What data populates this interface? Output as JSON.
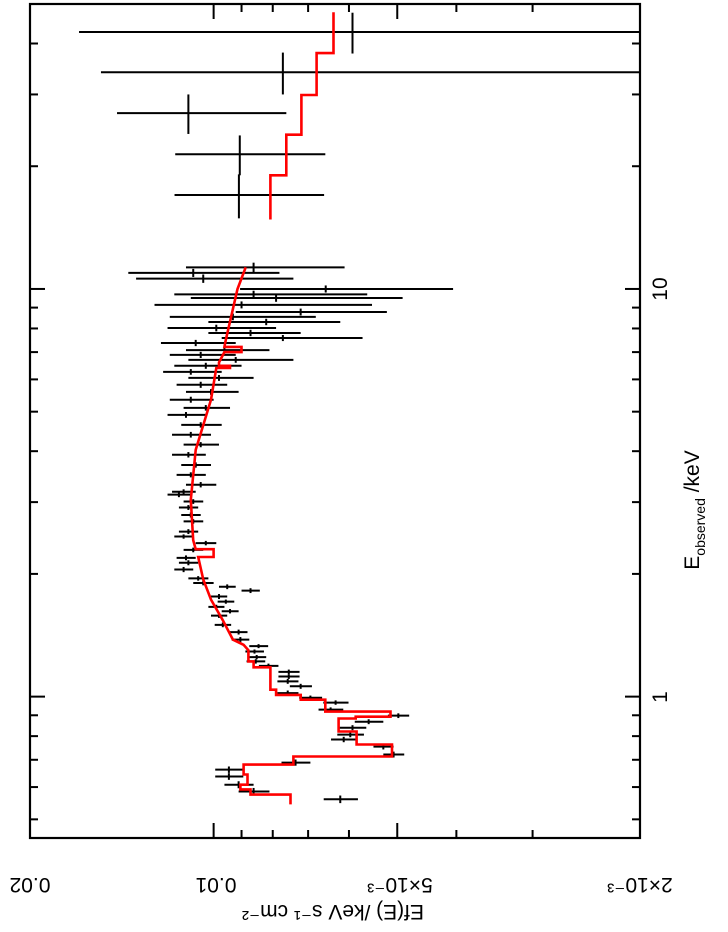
{
  "chart_data": {
    "type": "scatter",
    "orientation": "rotated 90 degrees counter-clockwise",
    "xlabel_main": "E",
    "xlabel_sub": "observed",
    "xlabel_unit": " /keV",
    "ylabel": "Ef(E) /keV s⁻¹ cm⁻²",
    "xscale": "log",
    "yscale": "log",
    "xlim": [
      0.45,
      50
    ],
    "ylim": [
      0.002,
      0.02
    ],
    "grid": false,
    "x_tick_labels": [
      {
        "value": 1,
        "label": "1"
      },
      {
        "value": 10,
        "label": "10"
      }
    ],
    "x_major_ticks": [
      1,
      10
    ],
    "x_minor_ticks": [
      0.5,
      0.6,
      0.7,
      0.8,
      0.9,
      2,
      3,
      4,
      5,
      6,
      7,
      8,
      9,
      20,
      30,
      40
    ],
    "y_tick_labels": [
      {
        "value": 0.02,
        "label": "0.02"
      },
      {
        "value": 0.01,
        "label": "0.01"
      },
      {
        "value": 0.005,
        "label": "5×10⁻³"
      },
      {
        "value": 0.002,
        "label": "2×10⁻³"
      }
    ],
    "y_major_ticks": [
      0.002,
      0.005,
      0.01,
      0.02
    ],
    "y_minor_ticks": [
      0.003,
      0.004,
      0.006,
      0.007,
      0.008,
      0.009
    ],
    "colors": {
      "data": "#000000",
      "model": "#ff0000"
    },
    "data_columns": [
      "energy_keV",
      "flux",
      "energy_err",
      "flux_err"
    ],
    "data_points": [
      [
        42.7,
        0.00592,
        4.9,
        0.0107
      ],
      [
        34.0,
        0.0077,
        4.0,
        0.0076
      ],
      [
        27.0,
        0.011,
        3.0,
        0.0034
      ],
      [
        21.4,
        0.00906,
        2.4,
        0.0025
      ],
      [
        17.0,
        0.00909,
        2.1,
        0.0025
      ],
      [
        11.3,
        0.0086,
        0.3,
        0.0025
      ],
      [
        10.95,
        0.0108,
        0.25,
        0.003
      ],
      [
        10.6,
        0.0104,
        0.25,
        0.003
      ],
      [
        10.0,
        0.00655,
        0.2,
        0.0025
      ],
      [
        9.7,
        0.0086,
        0.2,
        0.003
      ],
      [
        9.5,
        0.0079,
        0.2,
        0.003
      ],
      [
        9.14,
        0.009,
        0.18,
        0.0035
      ],
      [
        8.78,
        0.0072,
        0.17,
        0.002
      ],
      [
        8.54,
        0.0093,
        0.16,
        0.0025
      ],
      [
        8.3,
        0.0082,
        0.15,
        0.002
      ],
      [
        8.02,
        0.0099,
        0.15,
        0.002
      ],
      [
        7.8,
        0.0087,
        0.14,
        0.0015
      ],
      [
        7.58,
        0.0077,
        0.13,
        0.002
      ],
      [
        7.37,
        0.0107,
        0.13,
        0.0015
      ],
      [
        7.08,
        0.0096,
        0.12,
        0.0015
      ],
      [
        6.89,
        0.0105,
        0.12,
        0.0013
      ],
      [
        6.7,
        0.0092,
        0.11,
        0.0018
      ],
      [
        6.48,
        0.0103,
        0.11,
        0.0013
      ],
      [
        6.26,
        0.0109,
        0.1,
        0.0012
      ],
      [
        6.05,
        0.0098,
        0.1,
        0.0012
      ],
      [
        5.82,
        0.0105,
        0.1,
        0.001
      ],
      [
        5.59,
        0.0101,
        0.09,
        0.001
      ],
      [
        5.35,
        0.0109,
        0.09,
        0.0009
      ],
      [
        5.11,
        0.0103,
        0.08,
        0.0009
      ],
      [
        4.91,
        0.0111,
        0.08,
        0.0008
      ],
      [
        4.64,
        0.0105,
        0.07,
        0.0008
      ],
      [
        4.39,
        0.0109,
        0.07,
        0.0008
      ],
      [
        4.15,
        0.0105,
        0.06,
        0.0007
      ],
      [
        3.92,
        0.011,
        0.06,
        0.0007
      ],
      [
        3.7,
        0.0107,
        0.055,
        0.0006
      ],
      [
        3.5,
        0.0109,
        0.05,
        0.0006
      ],
      [
        3.31,
        0.0105,
        0.05,
        0.0006
      ],
      [
        3.18,
        0.0112,
        0.045,
        0.0005
      ],
      [
        3.13,
        0.0114,
        0.045,
        0.0005
      ],
      [
        3.01,
        0.0108,
        0.04,
        0.0004
      ],
      [
        2.91,
        0.011,
        0.04,
        0.0004
      ],
      [
        2.79,
        0.0109,
        0.04,
        0.0004
      ],
      [
        2.69,
        0.0108,
        0.035,
        0.0004
      ],
      [
        2.54,
        0.011,
        0.035,
        0.0004
      ],
      [
        2.47,
        0.0112,
        0.03,
        0.0004
      ],
      [
        2.38,
        0.0103,
        0.03,
        0.0004
      ],
      [
        2.29,
        0.0108,
        0.03,
        0.0004
      ],
      [
        2.19,
        0.0111,
        0.03,
        0.0004
      ],
      [
        2.13,
        0.011,
        0.03,
        0.0004
      ],
      [
        2.05,
        0.0112,
        0.03,
        0.0004
      ],
      [
        1.95,
        0.0106,
        0.025,
        0.0004
      ],
      [
        1.9,
        0.0104,
        0.025,
        0.0004
      ],
      [
        1.86,
        0.0095,
        0.025,
        0.0003
      ],
      [
        1.82,
        0.0087,
        0.025,
        0.0003
      ],
      [
        1.76,
        0.0098,
        0.025,
        0.0003
      ],
      [
        1.71,
        0.00955,
        0.02,
        0.0003
      ],
      [
        1.66,
        0.0099,
        0.02,
        0.0003
      ],
      [
        1.62,
        0.0094,
        0.02,
        0.0003
      ],
      [
        1.58,
        0.0098,
        0.02,
        0.0003
      ],
      [
        1.5,
        0.00966,
        0.02,
        0.0003
      ],
      [
        1.44,
        0.0091,
        0.02,
        0.0003
      ],
      [
        1.38,
        0.00904,
        0.02,
        0.0003
      ],
      [
        1.33,
        0.00844,
        0.015,
        0.0003
      ],
      [
        1.29,
        0.00857,
        0.015,
        0.0003
      ],
      [
        1.25,
        0.0085,
        0.015,
        0.0003
      ],
      [
        1.22,
        0.00853,
        0.015,
        0.0003
      ],
      [
        1.19,
        0.00813,
        0.015,
        0.0003
      ],
      [
        1.15,
        0.00753,
        0.015,
        0.0003
      ],
      [
        1.12,
        0.00753,
        0.015,
        0.0003
      ],
      [
        1.09,
        0.00756,
        0.015,
        0.0003
      ],
      [
        1.06,
        0.0072,
        0.015,
        0.0003
      ],
      [
        1.02,
        0.00756,
        0.015,
        0.0003
      ],
      [
        0.994,
        0.00694,
        0.012,
        0.0003
      ],
      [
        0.967,
        0.00631,
        0.012,
        0.0003
      ],
      [
        0.929,
        0.00643,
        0.012,
        0.0003
      ],
      [
        0.898,
        0.00498,
        0.012,
        0.0002
      ],
      [
        0.868,
        0.00557,
        0.012,
        0.0003
      ],
      [
        0.839,
        0.00592,
        0.012,
        0.0003
      ],
      [
        0.807,
        0.00597,
        0.012,
        0.0003
      ],
      [
        0.785,
        0.00612,
        0.012,
        0.0003
      ],
      [
        0.754,
        0.00527,
        0.012,
        0.0002
      ],
      [
        0.721,
        0.00507,
        0.012,
        0.0002
      ],
      [
        0.689,
        0.00734,
        0.012,
        0.0004
      ],
      [
        0.662,
        0.00944,
        0.012,
        0.0005
      ],
      [
        0.637,
        0.00944,
        0.012,
        0.0005
      ],
      [
        0.608,
        0.0091,
        0.012,
        0.0005
      ],
      [
        0.585,
        0.0086,
        0.012,
        0.0005
      ],
      [
        0.56,
        0.0062,
        0.012,
        0.0004
      ]
    ],
    "model_columns": [
      "energy_keV",
      "flux"
    ],
    "model_high": [
      [
        47.7,
        0.00636
      ],
      [
        37.9,
        0.00636
      ],
      [
        37.9,
        0.00678
      ],
      [
        29.9,
        0.00678
      ],
      [
        29.9,
        0.00718
      ],
      [
        23.9,
        0.00718
      ],
      [
        23.9,
        0.0076
      ],
      [
        19.0,
        0.0076
      ],
      [
        19.0,
        0.00807
      ],
      [
        14.8,
        0.00807
      ]
    ],
    "model_low": [
      [
        11.3,
        0.00886
      ],
      [
        10.0,
        0.00914
      ],
      [
        7.5,
        0.00955
      ],
      [
        7.21,
        0.0096
      ],
      [
        7.21,
        0.009
      ],
      [
        7.0,
        0.009
      ],
      [
        7.0,
        0.0096
      ],
      [
        6.6,
        0.0098
      ],
      [
        6.48,
        0.0098
      ],
      [
        6.48,
        0.0094
      ],
      [
        6.4,
        0.0094
      ],
      [
        6.4,
        0.0099
      ],
      [
        5.35,
        0.0101
      ],
      [
        4.03,
        0.0107
      ],
      [
        3.04,
        0.0109
      ],
      [
        2.42,
        0.0108
      ],
      [
        2.3,
        0.0107
      ],
      [
        2.3,
        0.01
      ],
      [
        2.2,
        0.01
      ],
      [
        2.2,
        0.0106
      ],
      [
        1.94,
        0.0104
      ],
      [
        1.73,
        0.0101
      ],
      [
        1.54,
        0.00966
      ],
      [
        1.38,
        0.0093
      ],
      [
        1.34,
        0.00893
      ],
      [
        1.3,
        0.00877
      ],
      [
        1.22,
        0.00877
      ],
      [
        1.22,
        0.0086
      ],
      [
        1.18,
        0.0086
      ],
      [
        1.18,
        0.00807
      ],
      [
        1.04,
        0.00807
      ],
      [
        1.04,
        0.0079
      ],
      [
        1.01,
        0.0079
      ],
      [
        1.01,
        0.0072
      ],
      [
        0.983,
        0.0072
      ],
      [
        0.983,
        0.00656
      ],
      [
        0.919,
        0.00656
      ],
      [
        0.919,
        0.00513
      ],
      [
        0.893,
        0.00513
      ],
      [
        0.893,
        0.00585
      ],
      [
        0.884,
        0.00585
      ],
      [
        0.884,
        0.00624
      ],
      [
        0.821,
        0.00624
      ],
      [
        0.821,
        0.00583
      ],
      [
        0.763,
        0.00583
      ],
      [
        0.763,
        0.0051
      ],
      [
        0.713,
        0.0051
      ],
      [
        0.713,
        0.0074
      ],
      [
        0.681,
        0.0074
      ],
      [
        0.681,
        0.00893
      ],
      [
        0.644,
        0.00893
      ],
      [
        0.644,
        0.0088
      ],
      [
        0.608,
        0.0088
      ],
      [
        0.608,
        0.00904
      ],
      [
        0.592,
        0.00904
      ],
      [
        0.592,
        0.0087
      ],
      [
        0.575,
        0.0087
      ],
      [
        0.575,
        0.00748
      ],
      [
        0.544,
        0.00748
      ]
    ]
  }
}
